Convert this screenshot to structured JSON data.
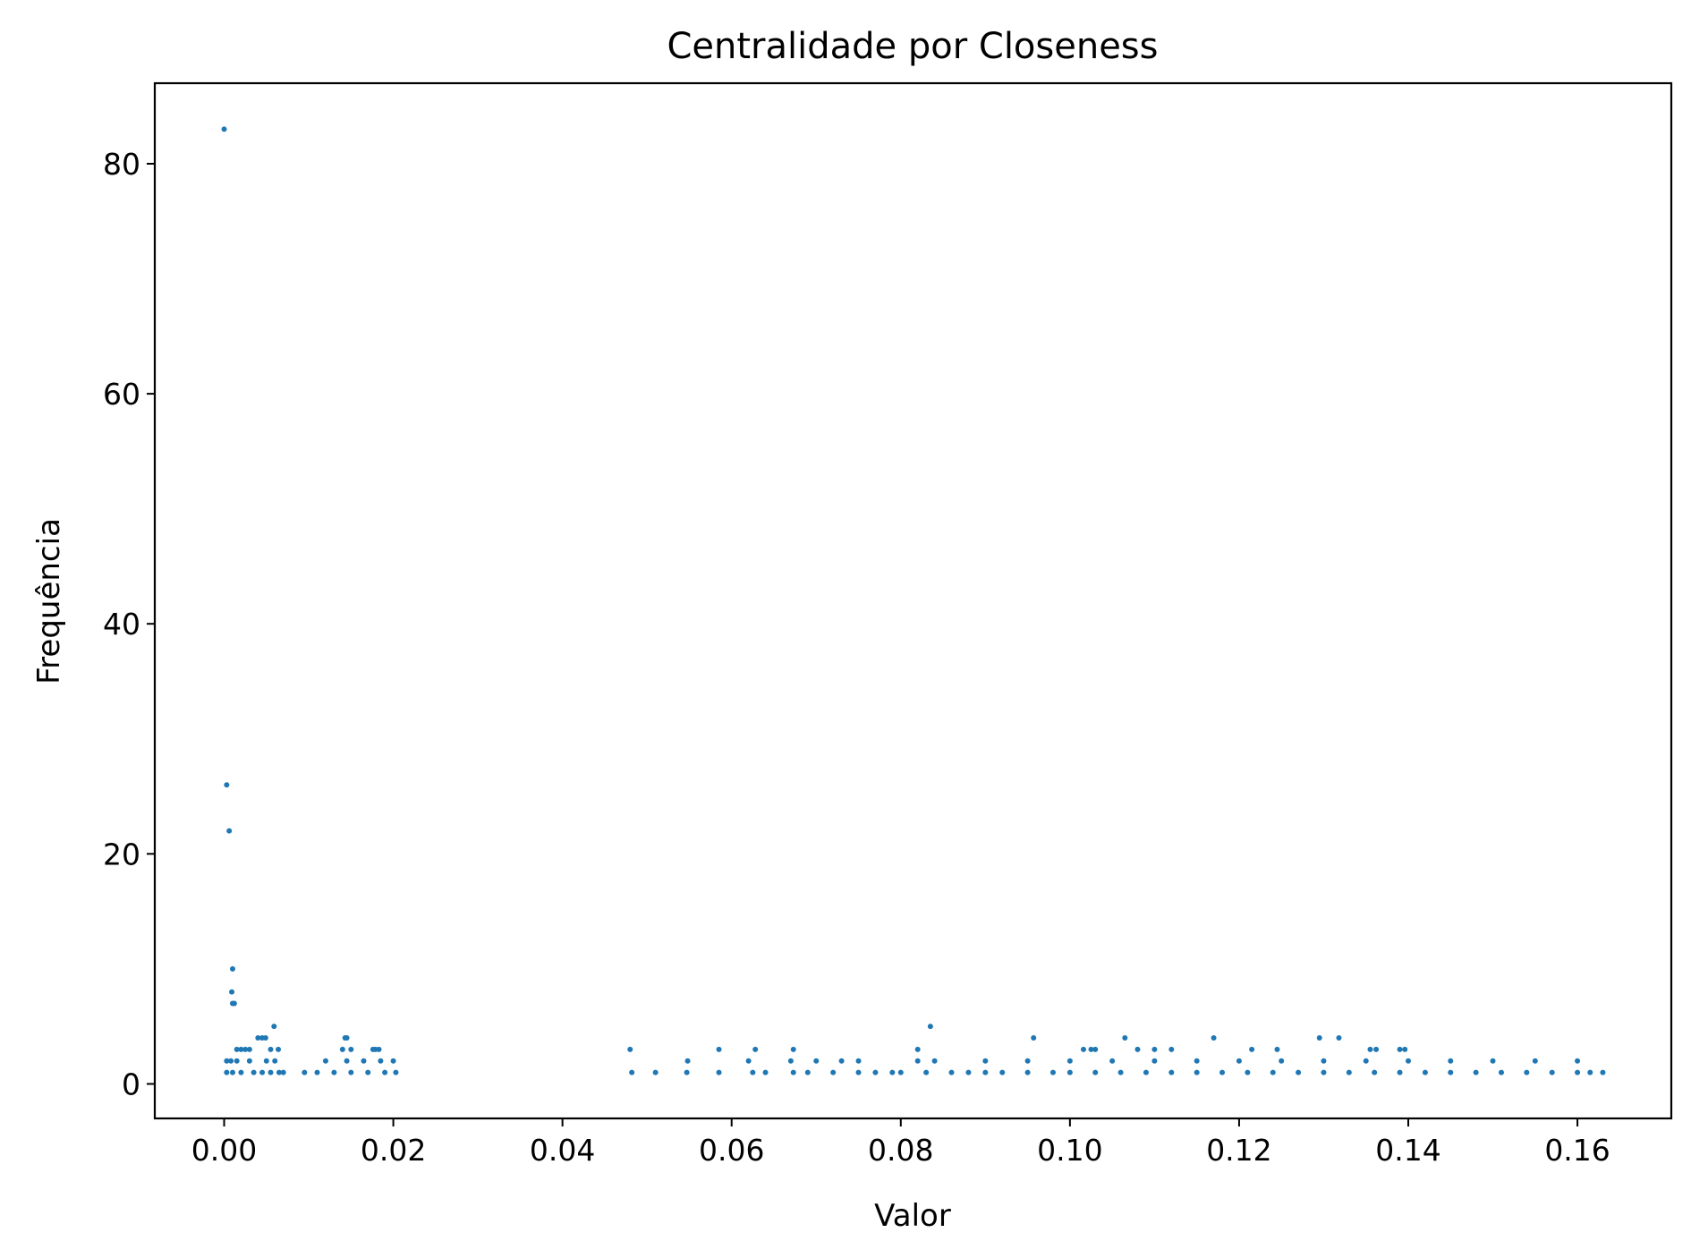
{
  "chart_data": {
    "type": "scatter",
    "title": "Centralidade por Closeness",
    "xlabel": "Valor",
    "ylabel": "Frequência",
    "xlim": [
      -0.0082,
      0.1711
    ],
    "ylim": [
      -3.0,
      87.0
    ],
    "xticks": [
      0.0,
      0.02,
      0.04,
      0.06,
      0.08,
      0.1,
      0.12,
      0.14,
      0.16
    ],
    "xtick_labels": [
      "0.00",
      "0.02",
      "0.04",
      "0.06",
      "0.08",
      "0.10",
      "0.12",
      "0.14",
      "0.16"
    ],
    "yticks": [
      0,
      20,
      40,
      60,
      80
    ],
    "ytick_labels": [
      "0",
      "20",
      "40",
      "60",
      "80"
    ],
    "grid": false,
    "marker_color": "#1f77b4",
    "points": {
      "x": [
        0.0,
        0.0003,
        0.0006,
        0.001,
        0.0009,
        0.0012,
        0.001,
        0.0059,
        0.0045,
        0.0049,
        0.004,
        0.003,
        0.0055,
        0.0064,
        0.0015,
        0.002,
        0.0025,
        0.0145,
        0.0143,
        0.014,
        0.015,
        0.0176,
        0.0183,
        0.0179,
        0.048,
        0.0585,
        0.0628,
        0.0673,
        0.0835,
        0.082,
        0.0957,
        0.1016,
        0.1025,
        0.103,
        0.1065,
        0.108,
        0.11,
        0.112,
        0.117,
        0.1215,
        0.1245,
        0.1295,
        0.1318,
        0.1355,
        0.1362,
        0.139,
        0.1396,
        0.0003,
        0.0008,
        0.0015,
        0.003,
        0.005,
        0.006,
        0.012,
        0.0145,
        0.0165,
        0.0185,
        0.02,
        0.0548,
        0.062,
        0.067,
        0.07,
        0.073,
        0.075,
        0.082,
        0.084,
        0.09,
        0.095,
        0.1,
        0.105,
        0.11,
        0.115,
        0.12,
        0.125,
        0.13,
        0.135,
        0.14,
        0.145,
        0.15,
        0.155,
        0.16,
        0.0003,
        0.001,
        0.002,
        0.0035,
        0.0045,
        0.0055,
        0.0065,
        0.007,
        0.0095,
        0.011,
        0.013,
        0.015,
        0.017,
        0.019,
        0.0203,
        0.0482,
        0.051,
        0.0547,
        0.0585,
        0.0625,
        0.064,
        0.0673,
        0.069,
        0.072,
        0.075,
        0.077,
        0.079,
        0.08,
        0.083,
        0.086,
        0.088,
        0.09,
        0.092,
        0.095,
        0.098,
        0.1,
        0.103,
        0.106,
        0.109,
        0.112,
        0.115,
        0.118,
        0.121,
        0.124,
        0.127,
        0.13,
        0.133,
        0.136,
        0.139,
        0.142,
        0.145,
        0.148,
        0.151,
        0.154,
        0.157,
        0.16,
        0.1615,
        0.163
      ],
      "y": [
        83,
        26,
        22,
        10,
        8,
        7,
        7,
        5,
        4,
        4,
        4,
        3,
        3,
        3,
        3,
        3,
        3,
        4,
        4,
        3,
        3,
        3,
        3,
        3,
        3,
        3,
        3,
        3,
        5,
        3,
        4,
        3,
        3,
        3,
        4,
        3,
        3,
        3,
        4,
        3,
        3,
        4,
        4,
        3,
        3,
        3,
        3,
        2,
        2,
        2,
        2,
        2,
        2,
        2,
        2,
        2,
        2,
        2,
        2,
        2,
        2,
        2,
        2,
        2,
        2,
        2,
        2,
        2,
        2,
        2,
        2,
        2,
        2,
        2,
        2,
        2,
        2,
        2,
        2,
        2,
        2,
        1,
        1,
        1,
        1,
        1,
        1,
        1,
        1,
        1,
        1,
        1,
        1,
        1,
        1,
        1,
        1,
        1,
        1,
        1,
        1,
        1,
        1,
        1,
        1,
        1,
        1,
        1,
        1,
        1,
        1,
        1,
        1,
        1,
        1,
        1,
        1,
        1,
        1,
        1,
        1,
        1,
        1,
        1,
        1,
        1,
        1,
        1,
        1,
        1,
        1,
        1,
        1,
        1,
        1,
        1,
        1,
        1,
        1
      ]
    }
  }
}
